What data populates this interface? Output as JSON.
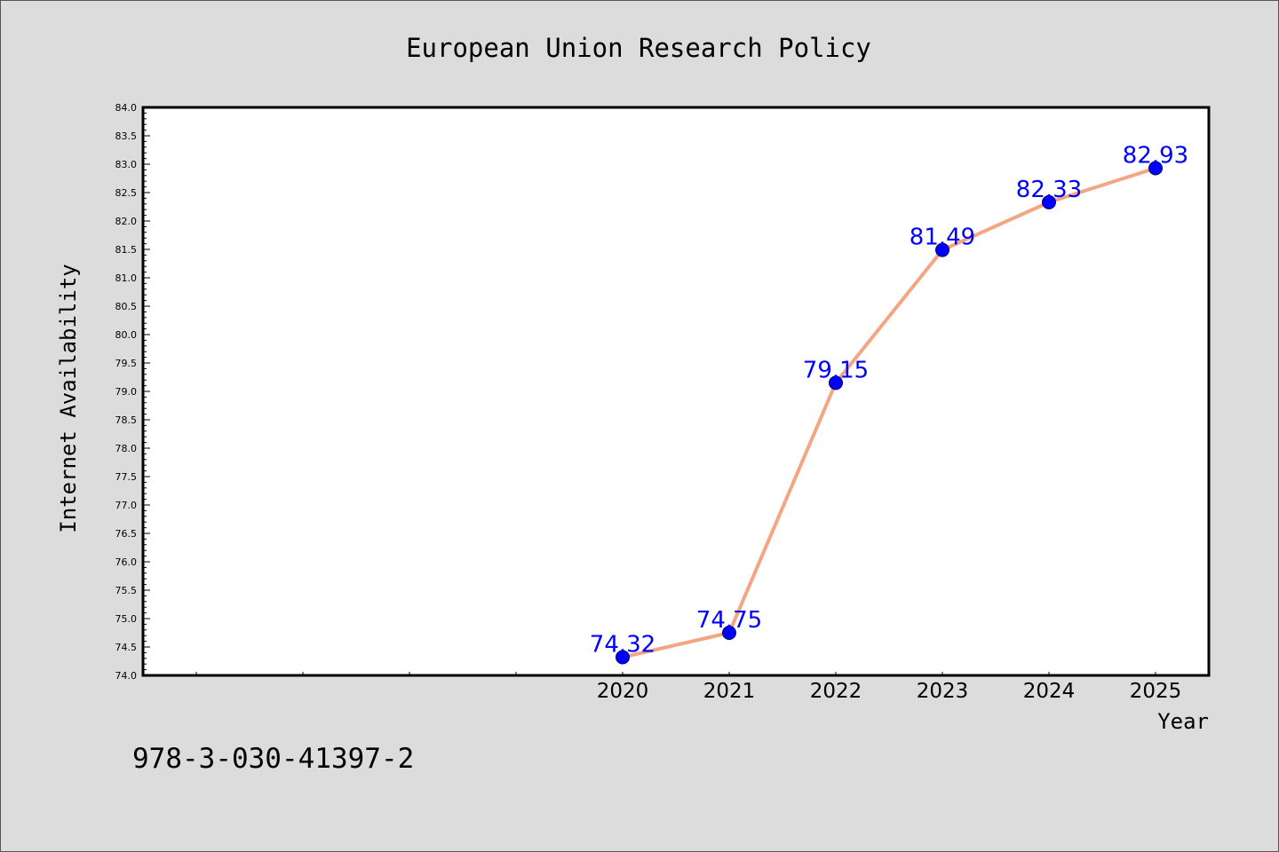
{
  "chart_data": {
    "type": "line",
    "title": "European Union Research Policy",
    "xlabel": "Year",
    "ylabel": "Internet Availability",
    "x": [
      "2020",
      "2021",
      "2022",
      "2023",
      "2024",
      "2025"
    ],
    "series": [
      {
        "values": [
          74.32,
          74.75,
          79.15,
          81.49,
          82.33,
          82.93
        ],
        "data_labels": [
          "74.32",
          "74.75",
          "79.15",
          "81.49",
          "82.33",
          "82.93"
        ],
        "line_color": "#f4a582",
        "marker_color": "#0000ff",
        "label_color": "#0000ff"
      }
    ],
    "ylim": [
      74.0,
      84.0
    ],
    "y_tick_step": 0.5,
    "x_range": [
      "2015.5",
      "2025.5"
    ],
    "y_tick_labels": [
      "74.0",
      "74.5",
      "75.0",
      "75.5",
      "76.0",
      "76.5",
      "77.0",
      "77.5",
      "78.0",
      "78.5",
      "79.0",
      "79.5",
      "80.0",
      "80.5",
      "81.0",
      "81.5",
      "82.0",
      "82.5",
      "83.0",
      "83.5",
      "84.0"
    ],
    "grid": false,
    "legend": "none"
  },
  "footnote": "978-3-030-41397-2",
  "colors": {
    "page_background": "#dcdcdc",
    "plot_background": "#ffffff",
    "axis": "#000000"
  }
}
